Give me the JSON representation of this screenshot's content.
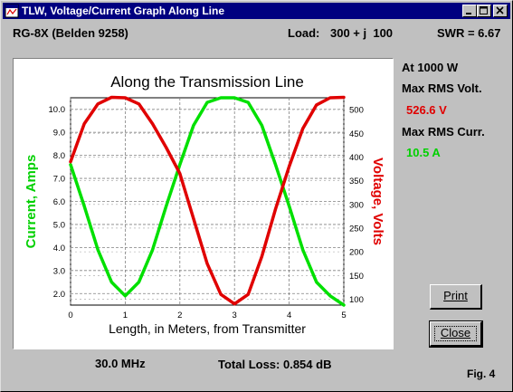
{
  "window": {
    "title": "TLW, Voltage/Current Graph Along Line"
  },
  "header": {
    "cable": "RG-8X (Belden 9258)",
    "load_label": "Load:",
    "load_value": "300 + j  100",
    "swr": "SWR = 6.67"
  },
  "side": {
    "power": "At 1000 W",
    "max_volt_label": "Max RMS Volt.",
    "max_volt_value": "526.6 V",
    "max_curr_label": "Max RMS Curr.",
    "max_curr_value": "10.5 A"
  },
  "buttons": {
    "print": "Print",
    "close": "Close"
  },
  "footer": {
    "frequency": "30.0 MHz",
    "total_loss": "Total Loss: 0.854 dB",
    "fig": "Fig. 4"
  },
  "chart_data": {
    "type": "line",
    "title": "Along the Transmission Line",
    "xlabel": "Length, in Meters, from Transmitter",
    "ylabel_left": "Current, Amps",
    "ylabel_right": "Voltage, Volts",
    "xlim": [
      0,
      5
    ],
    "ylim_left": [
      1.5,
      10.5
    ],
    "ylim_right": [
      87.5,
      525
    ],
    "x_ticks": [
      "0",
      "1",
      "2",
      "3",
      "4",
      "5"
    ],
    "y_ticks_left": [
      "2.0",
      "3.0",
      "4.0",
      "5.0",
      "6.0",
      "7.0",
      "8.0",
      "9.0",
      "10.0"
    ],
    "y_ticks_right": [
      "100",
      "150",
      "200",
      "250",
      "300",
      "350",
      "400",
      "450",
      "500"
    ],
    "grid": true,
    "series": [
      {
        "name": "Current",
        "axis": "left",
        "color": "#00e000",
        "x": [
          0,
          0.25,
          0.5,
          0.75,
          1.0,
          1.25,
          1.5,
          1.75,
          2.0,
          2.25,
          2.5,
          2.75,
          3.0,
          3.25,
          3.5,
          3.75,
          4.0,
          4.25,
          4.5,
          4.75,
          5.0
        ],
        "y": [
          7.6,
          5.8,
          3.9,
          2.5,
          1.9,
          2.5,
          3.9,
          5.8,
          7.6,
          9.3,
          10.3,
          10.5,
          10.5,
          10.3,
          9.3,
          7.6,
          5.8,
          3.9,
          2.5,
          1.9,
          1.5
        ]
      },
      {
        "name": "Voltage",
        "axis": "right",
        "color": "#e00000",
        "x": [
          0,
          0.25,
          0.5,
          0.75,
          1.0,
          1.25,
          1.5,
          1.75,
          2.0,
          2.25,
          2.5,
          2.75,
          3.0,
          3.25,
          3.5,
          3.75,
          4.0,
          4.25,
          4.5,
          4.75,
          5.0
        ],
        "y": [
          390,
          470,
          512,
          526,
          525,
          512,
          470,
          420,
          365,
          270,
          175,
          110,
          90,
          110,
          190,
          290,
          380,
          460,
          510,
          525,
          526
        ]
      }
    ]
  }
}
